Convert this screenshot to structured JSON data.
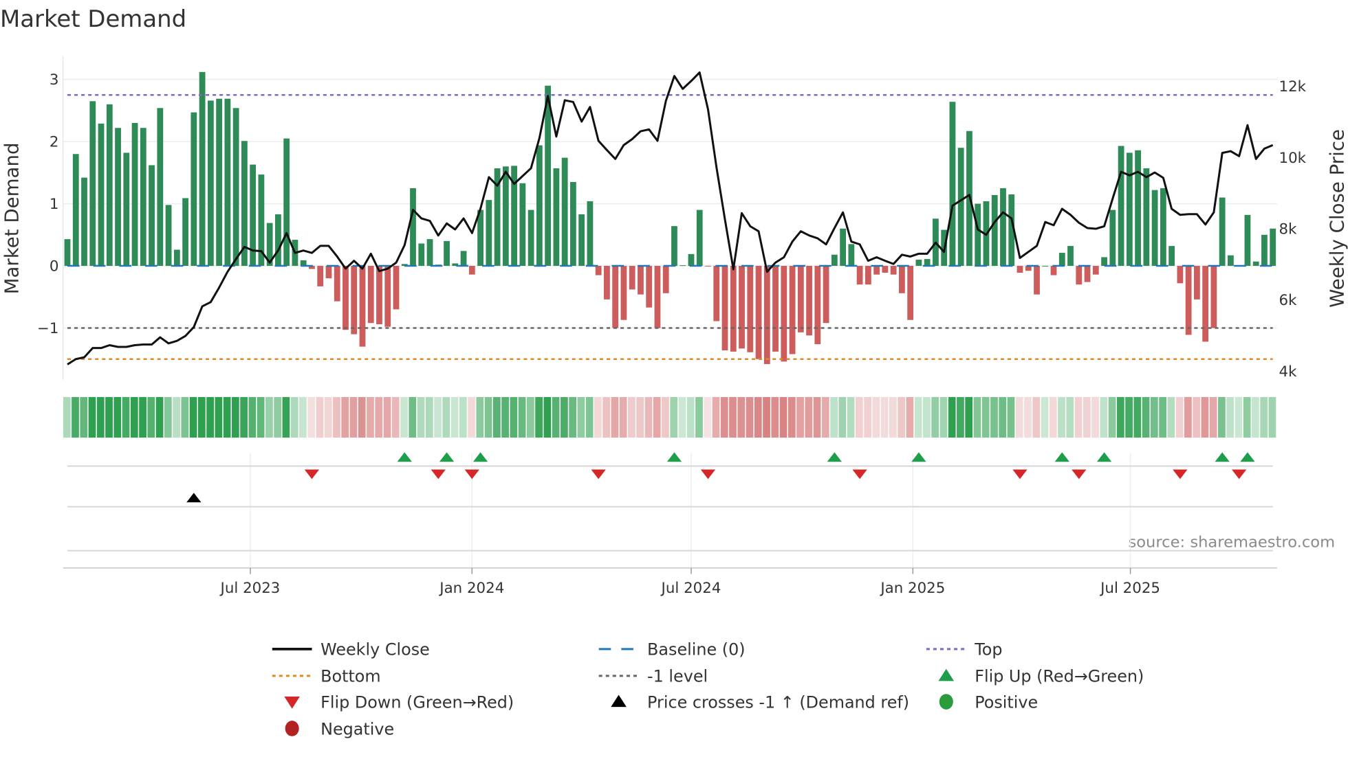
{
  "title": "Market Demand",
  "source": "source: sharemaestro.com",
  "colors": {
    "positive_bar": "#2e8b57",
    "negative_bar": "#cd5c5c",
    "weekly_close": "#111111",
    "baseline": "#1f77b4",
    "top": "#7b68c8",
    "bottom": "#e08a1e",
    "minus_one": "#666666",
    "flip_up": "#1e9e4a",
    "flip_down": "#d62728",
    "price_cross": "#000000",
    "positive_dot": "#2a9a3a",
    "negative_dot": "#b22222"
  },
  "chart_data": {
    "type": "bar",
    "title": "Market Demand",
    "ylabel": "Market Demand",
    "y2label": "Weekly Close Price",
    "ylim": [
      -1.8,
      3.3
    ],
    "y2lim": [
      3.7,
      12.9
    ],
    "yticks": [
      {
        "v": 3,
        "label": "3"
      },
      {
        "v": 2,
        "label": "2"
      },
      {
        "v": 1,
        "label": "1"
      },
      {
        "v": 0,
        "label": "0"
      },
      {
        "v": -1,
        "label": "−1"
      }
    ],
    "y2ticks": [
      {
        "v": 12,
        "label": "12k"
      },
      {
        "v": 10,
        "label": "10k"
      },
      {
        "v": 8,
        "label": "8k"
      },
      {
        "v": 6,
        "label": "6k"
      },
      {
        "v": 4,
        "label": "4k"
      }
    ],
    "xticks": [
      {
        "week": 21.7,
        "label": "Jul 2023"
      },
      {
        "week": 48.0,
        "label": "Jan 2024"
      },
      {
        "week": 74.0,
        "label": "Jul 2024"
      },
      {
        "week": 100.3,
        "label": "Jan 2025"
      },
      {
        "week": 126.1,
        "label": "Jul 2025"
      }
    ],
    "levels": {
      "top": 2.75,
      "baseline": 0,
      "minus_one": -1,
      "bottom": -1.5
    },
    "demand": [
      0.43,
      1.8,
      1.42,
      2.65,
      2.29,
      2.6,
      2.22,
      1.82,
      2.3,
      2.22,
      1.62,
      2.54,
      0.98,
      0.26,
      1.09,
      2.47,
      3.12,
      2.66,
      2.69,
      2.69,
      2.54,
      2.01,
      1.63,
      1.47,
      0.69,
      0.83,
      2.05,
      0.42,
      0.09,
      -0.05,
      -0.33,
      -0.2,
      -0.57,
      -1.03,
      -1.1,
      -1.3,
      -0.92,
      -0.94,
      -0.98,
      -0.7,
      0.03,
      1.25,
      0.36,
      0.43,
      0.02,
      0.4,
      0.04,
      0.24,
      -0.14,
      0.9,
      1.06,
      1.57,
      1.6,
      1.61,
      1.33,
      0.9,
      1.94,
      2.9,
      1.57,
      1.74,
      1.35,
      0.83,
      1.04,
      -0.15,
      -0.54,
      -1.0,
      -0.87,
      -0.38,
      -0.46,
      -0.67,
      -1.0,
      -0.44,
      0.64,
      0.01,
      0.19,
      0.9,
      -0.01,
      -0.89,
      -1.36,
      -1.38,
      -1.33,
      -1.39,
      -1.5,
      -1.58,
      -1.38,
      -1.54,
      -1.42,
      -1.07,
      -1.12,
      -1.26,
      -0.92,
      0.18,
      0.6,
      0.35,
      -0.3,
      -0.3,
      -0.14,
      -0.11,
      -0.14,
      -0.44,
      -0.87,
      0.1,
      0.11,
      0.76,
      0.58,
      2.64,
      1.9,
      2.17,
      1.0,
      1.04,
      1.14,
      1.25,
      1.15,
      -0.11,
      -0.08,
      -0.46,
      0.0,
      -0.15,
      0.21,
      0.32,
      -0.3,
      -0.26,
      -0.14,
      0.14,
      0.9,
      1.93,
      1.82,
      1.86,
      1.57,
      1.22,
      1.25,
      0.32,
      -0.28,
      -1.11,
      -0.54,
      -1.22,
      -1.0,
      1.1,
      0.17,
      0.01,
      0.82,
      0.07,
      0.5,
      0.6
    ],
    "weekly_close_k": [
      4.19,
      4.34,
      4.39,
      4.65,
      4.65,
      4.73,
      4.68,
      4.68,
      4.73,
      4.75,
      4.75,
      4.95,
      4.78,
      4.85,
      4.99,
      5.24,
      5.82,
      5.94,
      6.35,
      6.79,
      7.15,
      7.49,
      7.39,
      7.37,
      7.05,
      7.39,
      7.88,
      7.32,
      7.39,
      7.32,
      7.52,
      7.52,
      7.22,
      6.88,
      7.1,
      6.88,
      7.3,
      6.81,
      6.88,
      7.05,
      7.54,
      8.53,
      8.29,
      8.22,
      7.81,
      8.15,
      7.98,
      8.29,
      7.88,
      8.56,
      9.45,
      9.21,
      9.6,
      9.26,
      9.48,
      9.7,
      10.55,
      11.73,
      10.59,
      11.61,
      11.56,
      11.01,
      11.42,
      10.47,
      10.21,
      9.96,
      10.35,
      10.52,
      10.74,
      10.79,
      10.47,
      11.59,
      12.29,
      11.93,
      12.15,
      12.39,
      11.35,
      9.72,
      8.27,
      6.86,
      8.44,
      8.07,
      7.93,
      6.79,
      7.05,
      7.2,
      7.64,
      7.93,
      7.81,
      7.73,
      7.56,
      8.02,
      8.46,
      7.64,
      7.56,
      7.1,
      7.2,
      7.1,
      7.01,
      7.27,
      7.22,
      7.3,
      7.3,
      7.61,
      7.35,
      8.65,
      8.8,
      8.95,
      7.98,
      7.83,
      8.19,
      8.46,
      8.29,
      7.18,
      7.35,
      7.52,
      8.19,
      8.1,
      8.56,
      8.39,
      8.17,
      8.02,
      8.0,
      8.07,
      8.85,
      9.6,
      9.5,
      9.6,
      9.45,
      9.58,
      9.43,
      8.56,
      8.39,
      8.41,
      8.41,
      8.12,
      8.46,
      10.13,
      10.18,
      10.04,
      10.91,
      9.96,
      10.25,
      10.35
    ],
    "flip_up_weeks": [
      40,
      45,
      49,
      72,
      91,
      101,
      118,
      123,
      137,
      140
    ],
    "flip_down_weeks": [
      29,
      44,
      48,
      63,
      76,
      94,
      113,
      120,
      132,
      139
    ],
    "price_cross_weeks": [
      15
    ]
  },
  "legend": [
    {
      "key": "weekly_close",
      "label": "Weekly Close",
      "marker": "line"
    },
    {
      "key": "baseline",
      "label": "Baseline (0)",
      "marker": "dash"
    },
    {
      "key": "top",
      "label": "Top",
      "marker": "dot"
    },
    {
      "key": "bottom",
      "label": "Bottom",
      "marker": "dot"
    },
    {
      "key": "minus_one",
      "label": "-1 level",
      "marker": "dot"
    },
    {
      "key": "flip_up",
      "label": "Flip Up (Red→Green)",
      "marker": "tri-up"
    },
    {
      "key": "flip_down",
      "label": "Flip Down (Green→Red)",
      "marker": "tri-down"
    },
    {
      "key": "price_cross",
      "label": "Price crosses -1 ↑ (Demand ref)",
      "marker": "tri-up"
    },
    {
      "key": "positive_dot",
      "label": "Positive",
      "marker": "circle"
    },
    {
      "key": "negative_dot",
      "label": "Negative",
      "marker": "circle"
    }
  ]
}
